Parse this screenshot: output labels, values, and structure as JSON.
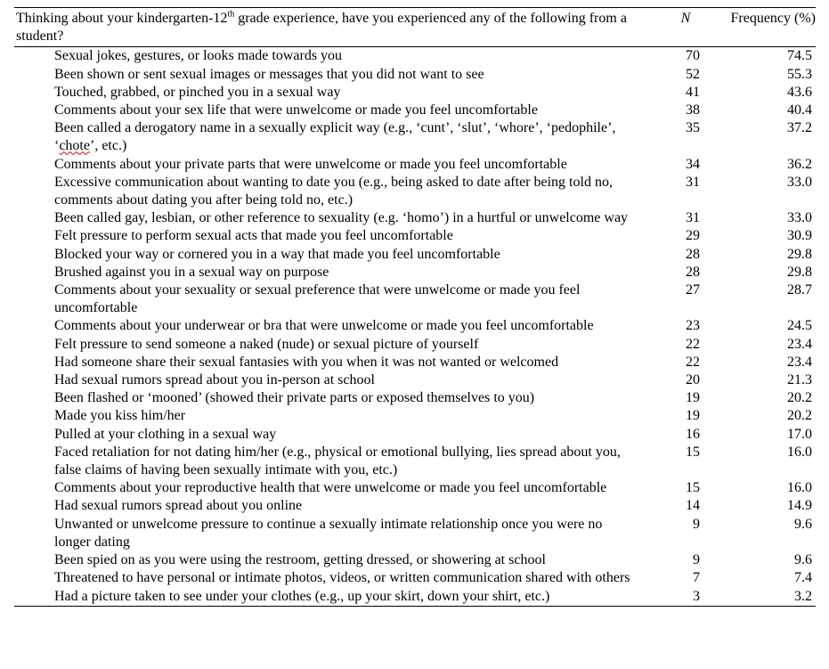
{
  "header": {
    "question_pre": "Thinking about your kindergarten-12",
    "question_sup": "th",
    "question_post": " grade experience, have you experienced any of the following from a student?",
    "n_label": "N",
    "frequency_label": "Frequency (%)"
  },
  "rows": [
    {
      "item": "Sexual jokes, gestures, or looks made towards you",
      "n": "70",
      "freq": "74.5"
    },
    {
      "item": "Been shown or sent sexual images or messages that you did not want to see",
      "n": "52",
      "freq": "55.3"
    },
    {
      "item": "Touched, grabbed, or pinched you in a sexual way",
      "n": "41",
      "freq": "43.6"
    },
    {
      "item": "Comments about your sex life that were unwelcome or made you feel uncomfortable",
      "n": "38",
      "freq": "40.4"
    },
    {
      "item_pre": "Been called a derogatory name in a sexually explicit way (e.g., ‘cunt’, ‘slut’, ‘whore’, ‘pedophile’, ‘",
      "item_spell": "chote",
      "item_post": "’, etc.)",
      "n": "35",
      "freq": "37.2"
    },
    {
      "item": "Comments about your private parts that were unwelcome or made you feel uncomfortable",
      "n": "34",
      "freq": "36.2"
    },
    {
      "item": "Excessive communication about wanting to date you (e.g., being asked to date after being told no, comments about dating you after being told no, etc.)",
      "n": "31",
      "freq": "33.0"
    },
    {
      "item": "Been called gay, lesbian, or other reference to sexuality (e.g. ‘homo’) in a hurtful or unwelcome way",
      "n": "31",
      "freq": "33.0"
    },
    {
      "item": "Felt pressure to perform sexual acts that made you feel uncomfortable",
      "n": "29",
      "freq": "30.9"
    },
    {
      "item": "Blocked your way or cornered you in a way that made you feel uncomfortable",
      "n": "28",
      "freq": "29.8"
    },
    {
      "item": "Brushed against you in a sexual way on purpose",
      "n": "28",
      "freq": "29.8"
    },
    {
      "item": "Comments about your sexuality or sexual preference that were unwelcome or made you feel uncomfortable",
      "n": "27",
      "freq": "28.7"
    },
    {
      "item": "Comments about your underwear or bra that were unwelcome or made you feel uncomfortable",
      "n": "23",
      "freq": "24.5"
    },
    {
      "item": "Felt pressure to send someone a naked (nude) or sexual picture of yourself",
      "n": "22",
      "freq": "23.4"
    },
    {
      "item": "Had someone share their sexual fantasies with you when it was not wanted or welcomed",
      "n": "22",
      "freq": "23.4"
    },
    {
      "item": "Had sexual rumors spread about you in-person at school",
      "n": "20",
      "freq": "21.3"
    },
    {
      "item": "Been flashed or ‘mooned’ (showed their private parts or exposed themselves to you)",
      "n": "19",
      "freq": "20.2"
    },
    {
      "item": "Made you kiss him/her",
      "n": "19",
      "freq": "20.2"
    },
    {
      "item": "Pulled at your clothing in a sexual way",
      "n": "16",
      "freq": "17.0"
    },
    {
      "item": "Faced retaliation for not dating him/her (e.g., physical or emotional bullying, lies spread about you, false claims of having been sexually intimate with you, etc.)",
      "n": "15",
      "freq": "16.0"
    },
    {
      "item": "Comments about your reproductive health that were unwelcome or made you feel uncomfortable",
      "n": "15",
      "freq": "16.0"
    },
    {
      "item": "Had sexual rumors spread about you online",
      "n": "14",
      "freq": "14.9"
    },
    {
      "item": "Unwanted or unwelcome pressure to continue a sexually intimate relationship once you were no longer dating",
      "n": "9",
      "freq": "9.6"
    },
    {
      "item": "Been spied on as you were using the restroom, getting dressed, or showering at school",
      "n": "9",
      "freq": "9.6"
    },
    {
      "item": "Threatened to have personal or intimate photos, videos, or written communication shared with others",
      "n": "7",
      "freq": "7.4"
    },
    {
      "item": "Had a picture taken to see under your clothes (e.g., up your skirt, down your shirt, etc.)",
      "n": "3",
      "freq": "3.2"
    }
  ]
}
